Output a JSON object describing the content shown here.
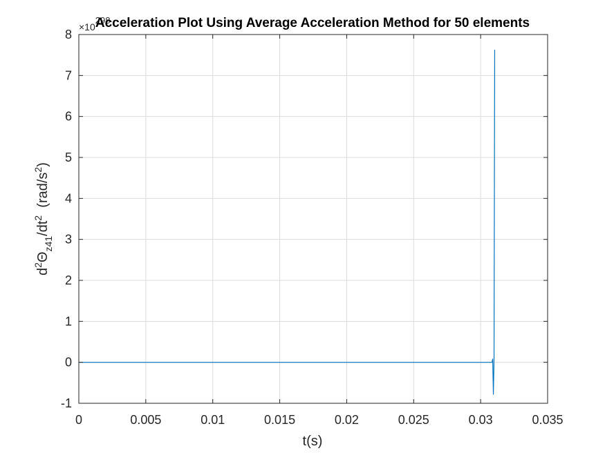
{
  "chart_data": {
    "type": "line",
    "title": "Acceleration Plot Using Average Acceleration Method for 50 elements",
    "xlabel": "t(s)",
    "ylabel": {
      "prefix": "d",
      "sup1": "2",
      "theta": "Θ",
      "sub": "z41",
      "mid": "/dt",
      "sup2": "2",
      "gap": "  (rad/s",
      "sup3": "2",
      "end": ")"
    },
    "y_exponent": {
      "base": "×10",
      "power": "298"
    },
    "xlim": [
      0,
      0.035
    ],
    "ylim": [
      -1,
      8
    ],
    "x_ticks": [
      0,
      0.005,
      0.01,
      0.015,
      0.02,
      0.025,
      0.03,
      0.035
    ],
    "x_tick_labels": [
      "0",
      "0.005",
      "0.01",
      "0.015",
      "0.02",
      "0.025",
      "0.03",
      "0.035"
    ],
    "y_ticks": [
      -1,
      0,
      1,
      2,
      3,
      4,
      5,
      6,
      7,
      8
    ],
    "y_tick_labels": [
      "-1",
      "0",
      "1",
      "2",
      "3",
      "4",
      "5",
      "6",
      "7",
      "8"
    ],
    "grid": true,
    "line_color": "#0072bd",
    "series": [
      {
        "x": [
          0,
          0.03,
          0.03085,
          0.0309,
          0.03095,
          0.031,
          0.03105
        ],
        "y": [
          0,
          0,
          0,
          0.08,
          -0.78,
          0.05,
          7.63
        ]
      }
    ]
  }
}
